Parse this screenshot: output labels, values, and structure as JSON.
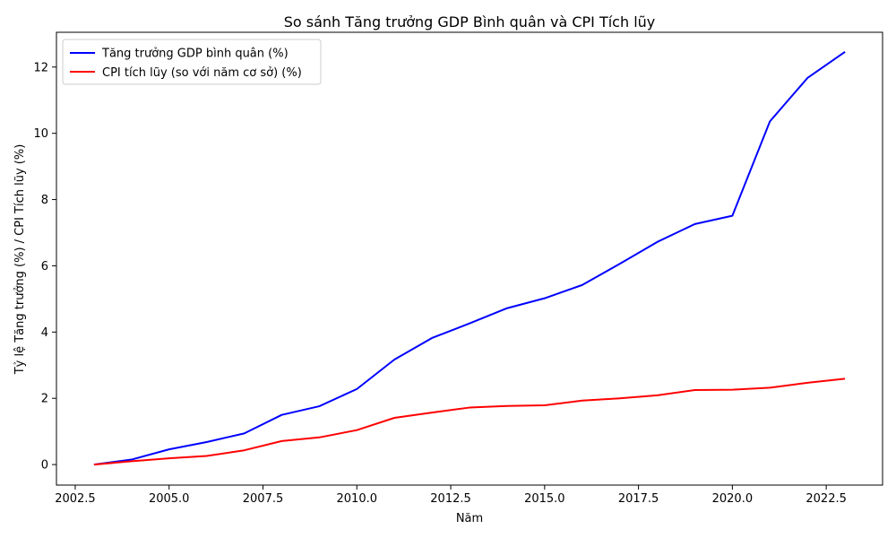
{
  "chart_data": {
    "type": "line",
    "title": "So sánh Tăng trưởng GDP Bình quân và CPI Tích lũy",
    "xlabel": "Năm",
    "ylabel": "Tỷ lệ Tăng trưởng (%) / CPI Tích lũy (%)",
    "xlim": [
      2002.0,
      2024.0
    ],
    "ylim": [
      -0.62,
      13.05
    ],
    "xticks": [
      2002.5,
      2005.0,
      2007.5,
      2010.0,
      2012.5,
      2015.0,
      2017.5,
      2020.0,
      2022.5
    ],
    "xtick_labels": [
      "2002.5",
      "2005.0",
      "2007.5",
      "2010.0",
      "2012.5",
      "2015.0",
      "2017.5",
      "2020.0",
      "2022.5"
    ],
    "yticks": [
      0,
      2,
      4,
      6,
      8,
      10,
      12
    ],
    "ytick_labels": [
      "0",
      "2",
      "4",
      "6",
      "8",
      "10",
      "12"
    ],
    "grid": false,
    "legend_position": "top-left",
    "x": [
      2003,
      2004,
      2005,
      2006,
      2007,
      2008,
      2009,
      2010,
      2011,
      2012,
      2013,
      2014,
      2015,
      2016,
      2017,
      2018,
      2019,
      2020,
      2021,
      2022,
      2023
    ],
    "series": [
      {
        "name": "Tăng trưởng GDP bình quân (%)",
        "color": "#0000ff",
        "values": [
          0.0,
          0.15,
          0.46,
          0.68,
          0.94,
          1.5,
          1.76,
          2.28,
          3.17,
          3.82,
          4.26,
          4.72,
          5.02,
          5.42,
          6.06,
          6.72,
          7.26,
          7.51,
          10.36,
          11.67,
          12.46
        ]
      },
      {
        "name": "CPI tích lũy (so với năm cơ sở) (%)",
        "color": "#ff0000",
        "values": [
          0.0,
          0.1,
          0.19,
          0.26,
          0.43,
          0.71,
          0.82,
          1.04,
          1.41,
          1.57,
          1.72,
          1.77,
          1.79,
          1.93,
          2.0,
          2.09,
          2.25,
          2.26,
          2.32,
          2.47,
          2.59
        ]
      }
    ]
  }
}
